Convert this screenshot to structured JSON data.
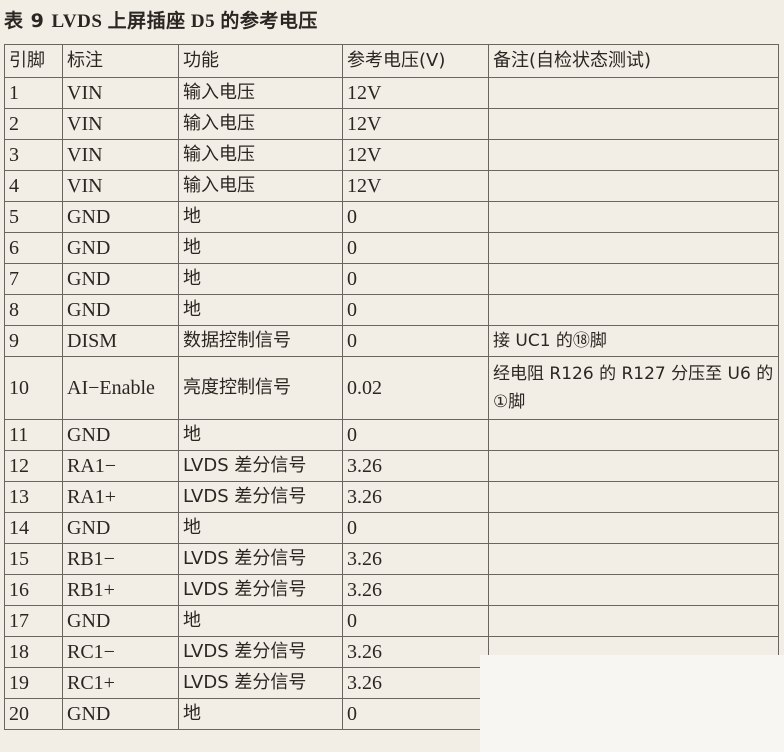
{
  "title": {
    "label": "表 9",
    "text": "LVDS 上屏插座 D5 的参考电压"
  },
  "headers": [
    "引脚",
    "标注",
    "功能",
    "参考电压(V)",
    "备注(自检状态测试)"
  ],
  "rows": [
    {
      "pin": "1",
      "label": "VIN",
      "function": "输入电压",
      "voltage": "12V",
      "note": ""
    },
    {
      "pin": "2",
      "label": "VIN",
      "function": "输入电压",
      "voltage": "12V",
      "note": ""
    },
    {
      "pin": "3",
      "label": "VIN",
      "function": "输入电压",
      "voltage": "12V",
      "note": ""
    },
    {
      "pin": "4",
      "label": "VIN",
      "function": "输入电压",
      "voltage": "12V",
      "note": ""
    },
    {
      "pin": "5",
      "label": "GND",
      "function": "地",
      "voltage": "0",
      "note": ""
    },
    {
      "pin": "6",
      "label": "GND",
      "function": "地",
      "voltage": "0",
      "note": ""
    },
    {
      "pin": "7",
      "label": "GND",
      "function": "地",
      "voltage": "0",
      "note": ""
    },
    {
      "pin": "8",
      "label": "GND",
      "function": "地",
      "voltage": "0",
      "note": ""
    },
    {
      "pin": "9",
      "label": "DISM",
      "function": "数据控制信号",
      "voltage": "0",
      "note": "接 UC1 的⑱脚"
    },
    {
      "pin": "10",
      "label": "AI−Enable",
      "function": "亮度控制信号",
      "voltage": "0.02",
      "note": "经电阻 R126 的 R127 分压至 U6 的①脚"
    },
    {
      "pin": "11",
      "label": "GND",
      "function": "地",
      "voltage": "0",
      "note": ""
    },
    {
      "pin": "12",
      "label": "RA1−",
      "function": "LVDS 差分信号",
      "voltage": "3.26",
      "note": ""
    },
    {
      "pin": "13",
      "label": "RA1+",
      "function": "LVDS 差分信号",
      "voltage": "3.26",
      "note": ""
    },
    {
      "pin": "14",
      "label": "GND",
      "function": "地",
      "voltage": "0",
      "note": ""
    },
    {
      "pin": "15",
      "label": "RB1−",
      "function": "LVDS 差分信号",
      "voltage": "3.26",
      "note": ""
    },
    {
      "pin": "16",
      "label": "RB1+",
      "function": "LVDS 差分信号",
      "voltage": "3.26",
      "note": ""
    },
    {
      "pin": "17",
      "label": "GND",
      "function": "地",
      "voltage": "0",
      "note": ""
    },
    {
      "pin": "18",
      "label": "RC1−",
      "function": "LVDS 差分信号",
      "voltage": "3.26",
      "note": ""
    },
    {
      "pin": "19",
      "label": "RC1+",
      "function": "LVDS 差分信号",
      "voltage": "3.26",
      "note": ""
    },
    {
      "pin": "20",
      "label": "GND",
      "function": "地",
      "voltage": "0",
      "note": ""
    }
  ]
}
